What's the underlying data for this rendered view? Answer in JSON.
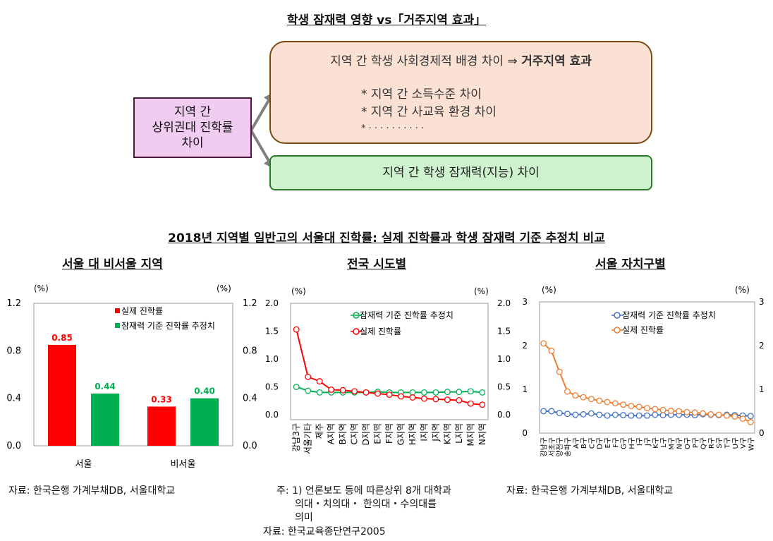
{
  "diagram": {
    "title": "학생 잠재력 영향 vs「거주지역 효과」",
    "left_box": [
      "지역 간",
      "상위권대 진학률",
      "차이"
    ],
    "top_box": {
      "line1_prefix": "지역 간 학생 사회경제적 배경 차이 ⇒ ",
      "line1_bold": "거주지역 효과",
      "bullets": [
        "* 지역 간 소득수준 차이",
        "* 지역 간 사교육 환경 차이",
        "* · · · · · · · · · ·"
      ]
    },
    "bottom_box": "지역 간 학생 잠재력(지능) 차이",
    "colors": {
      "left_fill": "#f0cdf0",
      "left_border": "#4a1a3a",
      "top_fill": "#fbe1d3",
      "top_border": "#7a4a14",
      "bottom_fill": "#cdf2cd",
      "bottom_border": "#2c7a2c",
      "arrow": "#808080"
    }
  },
  "section_title": "2018년 지역별 일반고의 서울대 진학률: 실제 진학률과 학생 잠재력 기준 추정치 비교",
  "charts": {
    "c1": {
      "subtitle": "서울 대 비서울 지역",
      "unit_left": "(%)",
      "unit_right": "(%)",
      "y_ticks": [
        "1.2",
        "0.8",
        "0.4",
        "0.0"
      ],
      "legend": [
        "실제 진학률",
        "잠재력 기준 진학률 추정치"
      ],
      "categories": [
        "서울",
        "비서울"
      ],
      "labels": {
        "actual": [
          "0.85",
          "0.33"
        ],
        "estimate": [
          "0.44",
          "0.40"
        ]
      }
    },
    "c2": {
      "subtitle": "전국 시도별",
      "unit_left": "(%)",
      "unit_right": "(%)",
      "y_ticks": [
        "2.0",
        "1.5",
        "1.0",
        "0.5",
        "0.0"
      ],
      "legend": [
        "잠재력 기준 진학률 추정치",
        "실제 진학률"
      ],
      "categories": [
        "강남3구",
        "서울기타",
        "제주",
        "A지역",
        "B지역",
        "C지역",
        "D지역",
        "E지역",
        "F지역",
        "G지역",
        "H지역",
        "I지역",
        "J지역",
        "K지역",
        "L지역",
        "M지역",
        "N지역"
      ]
    },
    "c3": {
      "subtitle": "서울 자치구별",
      "unit_left": "(%)",
      "unit_right": "(%)",
      "y_ticks": [
        "3",
        "2",
        "1",
        "0"
      ],
      "legend": [
        "잠재력 기준 진학률 추정치",
        "실제 진학률"
      ],
      "categories": [
        "강남구",
        "서초구",
        "양천구",
        "송파구",
        "A구",
        "B구",
        "C구",
        "D구",
        "E구",
        "F구",
        "G구",
        "H구",
        "I구",
        "J구",
        "K구",
        "L구",
        "M구",
        "N구",
        "O구",
        "P구",
        "Q구",
        "R구",
        "S구",
        "T구",
        "U구",
        "V구",
        "W구"
      ]
    }
  },
  "notes": {
    "left": "자료: 한국은행 가계부채DB, 서울대학교",
    "mid_line1": "주: 1) 언론보도 등에 따른상위 8개 대학과",
    "mid_line2": "의대・치의대・ 한의대・수의대를",
    "mid_line3": "의미",
    "mid_source": "자료: 한국교육종단연구2005",
    "right": "자료: 한국은행 가계부채DB, 서울대학교"
  },
  "chart_data": [
    {
      "type": "bar",
      "categories": [
        "서울",
        "비서울"
      ],
      "series": [
        {
          "name": "실제 진학률",
          "values": [
            0.85,
            0.33
          ],
          "color": "#ff0000"
        },
        {
          "name": "잠재력 기준 진학률 추정치",
          "values": [
            0.44,
            0.4
          ],
          "color": "#00b050"
        }
      ],
      "ylim": [
        0,
        1.2
      ],
      "ylabel": "(%)"
    },
    {
      "type": "line",
      "categories": [
        "강남3구",
        "서울기타",
        "제주",
        "A지역",
        "B지역",
        "C지역",
        "D지역",
        "E지역",
        "F지역",
        "G지역",
        "H지역",
        "I지역",
        "J지역",
        "K지역",
        "L지역",
        "M지역",
        "N지역"
      ],
      "series": [
        {
          "name": "잠재력 기준 진학률 추정치",
          "values": [
            0.5,
            0.43,
            0.4,
            0.4,
            0.4,
            0.4,
            0.4,
            0.41,
            0.4,
            0.4,
            0.4,
            0.4,
            0.4,
            0.41,
            0.41,
            0.42,
            0.4
          ],
          "color": "#00b050"
        },
        {
          "name": "실제 진학률",
          "values": [
            1.53,
            0.68,
            0.6,
            0.45,
            0.44,
            0.42,
            0.4,
            0.38,
            0.36,
            0.33,
            0.31,
            0.29,
            0.28,
            0.27,
            0.26,
            0.2,
            0.18
          ],
          "color": "#ff0000"
        }
      ],
      "ylim": [
        0,
        2.0
      ],
      "ylabel": "(%)"
    },
    {
      "type": "line",
      "categories": [
        "강남구",
        "서초구",
        "양천구",
        "송파구",
        "A구",
        "B구",
        "C구",
        "D구",
        "E구",
        "F구",
        "G구",
        "H구",
        "I구",
        "J구",
        "K구",
        "L구",
        "M구",
        "N구",
        "O구",
        "P구",
        "Q구",
        "R구",
        "S구",
        "T구",
        "U구",
        "V구",
        "W구"
      ],
      "series": [
        {
          "name": "잠재력 기준 진학률 추정치",
          "values": [
            0.5,
            0.5,
            0.46,
            0.44,
            0.42,
            0.43,
            0.45,
            0.42,
            0.4,
            0.42,
            0.41,
            0.4,
            0.4,
            0.4,
            0.42,
            0.41,
            0.42,
            0.42,
            0.42,
            0.41,
            0.43,
            0.42,
            0.41,
            0.42,
            0.41,
            0.4,
            0.39
          ],
          "color": "#4472c4"
        },
        {
          "name": "실제 진학률",
          "values": [
            2.05,
            1.88,
            1.4,
            0.95,
            0.86,
            0.82,
            0.78,
            0.74,
            0.71,
            0.68,
            0.65,
            0.62,
            0.6,
            0.57,
            0.55,
            0.53,
            0.51,
            0.5,
            0.48,
            0.47,
            0.45,
            0.43,
            0.42,
            0.4,
            0.38,
            0.33,
            0.25
          ],
          "color": "#ed7d31"
        }
      ],
      "ylim": [
        0,
        3
      ],
      "ylabel": "(%)"
    }
  ]
}
